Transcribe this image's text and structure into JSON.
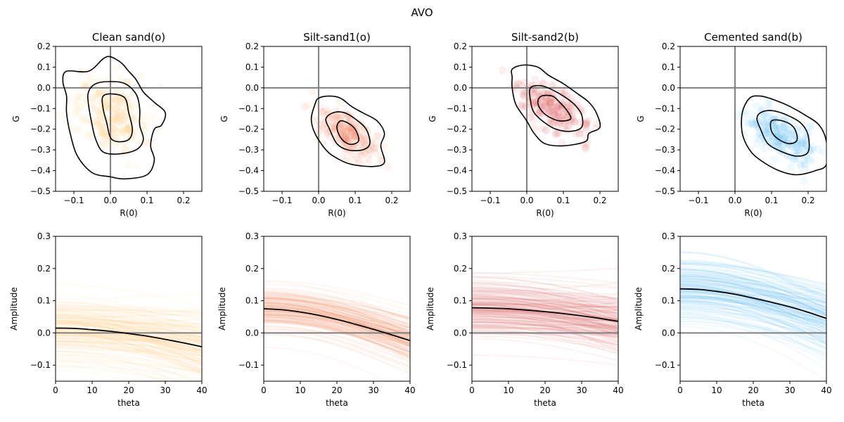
{
  "figure": {
    "title": "AVO"
  },
  "chart_data": [
    {
      "type": "scatter",
      "title": "Clean sand(o)",
      "xlabel": "R(0)",
      "ylabel": "G",
      "xlim": [
        -0.15,
        0.25
      ],
      "ylim": [
        -0.5,
        0.2
      ],
      "xticks": [
        -0.1,
        0.0,
        0.1,
        0.2
      ],
      "xtick_labels": [
        "−0.1",
        "0.0",
        "0.1",
        "0.2"
      ],
      "yticks": [
        -0.5,
        -0.4,
        -0.3,
        -0.2,
        -0.1,
        0.0,
        0.1,
        0.2
      ],
      "ytick_labels": [
        "−0.5",
        "−0.4",
        "−0.3",
        "−0.2",
        "−0.1",
        "0.0",
        "0.1",
        "0.2"
      ],
      "reference_lines": {
        "x": 0,
        "y": 0
      },
      "color": "#fdc86b",
      "point_cloud": {
        "center": [
          0.0,
          -0.13
        ],
        "spread": [
          0.05,
          0.09
        ],
        "tilt": -0.3
      },
      "contours": [
        [
          [
            -0.06,
            0.08
          ],
          [
            -0.02,
            0.14
          ],
          [
            0.0,
            0.15
          ],
          [
            0.03,
            0.12
          ],
          [
            0.05,
            0.08
          ],
          [
            0.07,
            0.04
          ],
          [
            0.09,
            -0.02
          ],
          [
            0.12,
            -0.07
          ],
          [
            0.15,
            -0.12
          ],
          [
            0.14,
            -0.18
          ],
          [
            0.12,
            -0.2
          ],
          [
            0.11,
            -0.28
          ],
          [
            0.12,
            -0.35
          ],
          [
            0.1,
            -0.42
          ],
          [
            0.04,
            -0.44
          ],
          [
            0.0,
            -0.43
          ],
          [
            -0.05,
            -0.41
          ],
          [
            -0.09,
            -0.33
          ],
          [
            -0.11,
            -0.22
          ],
          [
            -0.12,
            -0.12
          ],
          [
            -0.12,
            -0.04
          ],
          [
            -0.13,
            0.03
          ],
          [
            -0.12,
            0.08
          ]
        ],
        [
          [
            -0.04,
            0.02
          ],
          [
            0.0,
            0.03
          ],
          [
            0.04,
            0.02
          ],
          [
            0.07,
            -0.03
          ],
          [
            0.08,
            -0.1
          ],
          [
            0.08,
            -0.18
          ],
          [
            0.09,
            -0.25
          ],
          [
            0.07,
            -0.3
          ],
          [
            0.02,
            -0.32
          ],
          [
            -0.02,
            -0.31
          ],
          [
            -0.04,
            -0.25
          ],
          [
            -0.05,
            -0.18
          ],
          [
            -0.06,
            -0.08
          ],
          [
            -0.06,
            -0.02
          ]
        ],
        [
          [
            -0.02,
            -0.04
          ],
          [
            0.01,
            -0.03
          ],
          [
            0.04,
            -0.05
          ],
          [
            0.05,
            -0.12
          ],
          [
            0.06,
            -0.2
          ],
          [
            0.05,
            -0.25
          ],
          [
            0.02,
            -0.26
          ],
          [
            0.0,
            -0.24
          ],
          [
            -0.01,
            -0.17
          ],
          [
            -0.02,
            -0.1
          ]
        ]
      ]
    },
    {
      "type": "scatter",
      "title": "Silt-sand1(o)",
      "xlabel": "R(0)",
      "ylabel": "G",
      "xlim": [
        -0.15,
        0.25
      ],
      "ylim": [
        -0.5,
        0.2
      ],
      "xticks": [
        -0.1,
        0.0,
        0.1,
        0.2
      ],
      "xtick_labels": [
        "−0.1",
        "0.0",
        "0.1",
        "0.2"
      ],
      "yticks": [
        -0.5,
        -0.4,
        -0.3,
        -0.2,
        -0.1,
        0.0,
        0.1,
        0.2
      ],
      "ytick_labels": [
        "−0.5",
        "−0.4",
        "−0.3",
        "−0.2",
        "−0.1",
        "0.0",
        "0.1",
        "0.2"
      ],
      "reference_lines": {
        "x": 0,
        "y": 0
      },
      "color": "#f4895f",
      "point_cloud": {
        "center": [
          0.08,
          -0.22
        ],
        "spread": [
          0.04,
          0.06
        ],
        "tilt": -0.6
      },
      "contours": [
        [
          [
            0.0,
            -0.05
          ],
          [
            0.03,
            -0.04
          ],
          [
            0.06,
            -0.05
          ],
          [
            0.09,
            -0.09
          ],
          [
            0.12,
            -0.12
          ],
          [
            0.16,
            -0.16
          ],
          [
            0.18,
            -0.22
          ],
          [
            0.17,
            -0.28
          ],
          [
            0.18,
            -0.36
          ],
          [
            0.15,
            -0.38
          ],
          [
            0.09,
            -0.37
          ],
          [
            0.05,
            -0.34
          ],
          [
            0.02,
            -0.3
          ],
          [
            -0.01,
            -0.22
          ],
          [
            -0.02,
            -0.15
          ],
          [
            -0.01,
            -0.08
          ]
        ],
        [
          [
            0.04,
            -0.12
          ],
          [
            0.07,
            -0.12
          ],
          [
            0.1,
            -0.15
          ],
          [
            0.13,
            -0.2
          ],
          [
            0.14,
            -0.27
          ],
          [
            0.12,
            -0.3
          ],
          [
            0.08,
            -0.3
          ],
          [
            0.05,
            -0.27
          ],
          [
            0.03,
            -0.2
          ],
          [
            0.02,
            -0.15
          ]
        ],
        [
          [
            0.06,
            -0.16
          ],
          [
            0.08,
            -0.17
          ],
          [
            0.1,
            -0.2
          ],
          [
            0.11,
            -0.25
          ],
          [
            0.1,
            -0.27
          ],
          [
            0.08,
            -0.27
          ],
          [
            0.06,
            -0.24
          ],
          [
            0.05,
            -0.19
          ]
        ]
      ]
    },
    {
      "type": "scatter",
      "title": "Silt-sand2(b)",
      "xlabel": "R(0)",
      "ylabel": "G",
      "xlim": [
        -0.15,
        0.25
      ],
      "ylim": [
        -0.5,
        0.2
      ],
      "xticks": [
        -0.1,
        0.0,
        0.1,
        0.2
      ],
      "xtick_labels": [
        "−0.1",
        "0.0",
        "0.1",
        "0.2"
      ],
      "yticks": [
        -0.5,
        -0.4,
        -0.3,
        -0.2,
        -0.1,
        0.0,
        0.1,
        0.2
      ],
      "ytick_labels": [
        "−0.5",
        "−0.4",
        "−0.3",
        "−0.2",
        "−0.1",
        "0.0",
        "0.1",
        "0.2"
      ],
      "reference_lines": {
        "x": 0,
        "y": 0
      },
      "color": "#d94a4a",
      "point_cloud": {
        "center": [
          0.07,
          -0.1
        ],
        "spread": [
          0.05,
          0.07
        ],
        "tilt": -0.6
      },
      "contours": [
        [
          [
            -0.04,
            0.09
          ],
          [
            -0.01,
            0.11
          ],
          [
            0.03,
            0.1
          ],
          [
            0.06,
            0.06
          ],
          [
            0.1,
            0.02
          ],
          [
            0.14,
            -0.03
          ],
          [
            0.17,
            -0.07
          ],
          [
            0.19,
            -0.12
          ],
          [
            0.2,
            -0.19
          ],
          [
            0.17,
            -0.22
          ],
          [
            0.16,
            -0.26
          ],
          [
            0.1,
            -0.28
          ],
          [
            0.05,
            -0.27
          ],
          [
            0.02,
            -0.22
          ],
          [
            0.0,
            -0.16
          ],
          [
            -0.03,
            -0.08
          ],
          [
            -0.04,
            0.0
          ],
          [
            -0.04,
            0.05
          ]
        ],
        [
          [
            0.01,
            0.0
          ],
          [
            0.04,
            0.01
          ],
          [
            0.07,
            -0.01
          ],
          [
            0.1,
            -0.04
          ],
          [
            0.13,
            -0.08
          ],
          [
            0.15,
            -0.13
          ],
          [
            0.15,
            -0.19
          ],
          [
            0.12,
            -0.21
          ],
          [
            0.08,
            -0.2
          ],
          [
            0.05,
            -0.17
          ],
          [
            0.02,
            -0.12
          ],
          [
            0.01,
            -0.06
          ]
        ],
        [
          [
            0.04,
            -0.04
          ],
          [
            0.07,
            -0.04
          ],
          [
            0.09,
            -0.07
          ],
          [
            0.11,
            -0.11
          ],
          [
            0.12,
            -0.15
          ],
          [
            0.09,
            -0.16
          ],
          [
            0.06,
            -0.14
          ],
          [
            0.04,
            -0.11
          ],
          [
            0.03,
            -0.07
          ]
        ]
      ]
    },
    {
      "type": "scatter",
      "title": "Cemented sand(b)",
      "xlabel": "R(0)",
      "ylabel": "G",
      "xlim": [
        -0.15,
        0.25
      ],
      "ylim": [
        -0.5,
        0.2
      ],
      "xticks": [
        -0.1,
        0.0,
        0.1,
        0.2
      ],
      "xtick_labels": [
        "−0.1",
        "0.0",
        "0.1",
        "0.2"
      ],
      "yticks": [
        -0.5,
        -0.4,
        -0.3,
        -0.2,
        -0.1,
        0.0,
        0.1,
        0.2
      ],
      "ytick_labels": [
        "−0.5",
        "−0.4",
        "−0.3",
        "−0.2",
        "−0.1",
        "0.0",
        "0.1",
        "0.2"
      ],
      "reference_lines": {
        "x": 0,
        "y": 0
      },
      "color": "#5cb8f5",
      "point_cloud": {
        "center": [
          0.13,
          -0.23
        ],
        "spread": [
          0.05,
          0.07
        ],
        "tilt": -0.6
      },
      "contours": [
        [
          [
            0.04,
            -0.05
          ],
          [
            0.07,
            -0.04
          ],
          [
            0.11,
            -0.06
          ],
          [
            0.15,
            -0.09
          ],
          [
            0.19,
            -0.13
          ],
          [
            0.23,
            -0.18
          ],
          [
            0.25,
            -0.26
          ],
          [
            0.25,
            -0.37
          ],
          [
            0.22,
            -0.4
          ],
          [
            0.17,
            -0.42
          ],
          [
            0.12,
            -0.4
          ],
          [
            0.07,
            -0.35
          ],
          [
            0.04,
            -0.3
          ],
          [
            0.02,
            -0.22
          ],
          [
            0.02,
            -0.12
          ]
        ],
        [
          [
            0.07,
            -0.12
          ],
          [
            0.1,
            -0.11
          ],
          [
            0.14,
            -0.13
          ],
          [
            0.18,
            -0.17
          ],
          [
            0.2,
            -0.23
          ],
          [
            0.2,
            -0.31
          ],
          [
            0.17,
            -0.33
          ],
          [
            0.13,
            -0.31
          ],
          [
            0.09,
            -0.27
          ],
          [
            0.07,
            -0.2
          ],
          [
            0.06,
            -0.15
          ]
        ],
        [
          [
            0.1,
            -0.16
          ],
          [
            0.13,
            -0.16
          ],
          [
            0.16,
            -0.19
          ],
          [
            0.17,
            -0.25
          ],
          [
            0.15,
            -0.27
          ],
          [
            0.12,
            -0.25
          ],
          [
            0.1,
            -0.21
          ]
        ]
      ]
    },
    {
      "type": "line",
      "xlabel": "theta",
      "ylabel": "Amplitude",
      "xlim": [
        0,
        40
      ],
      "ylim": [
        -0.15,
        0.3
      ],
      "xticks": [
        0,
        10,
        20,
        30,
        40
      ],
      "xtick_labels": [
        "0",
        "10",
        "20",
        "30",
        "40"
      ],
      "yticks": [
        -0.1,
        0.0,
        0.1,
        0.2,
        0.3
      ],
      "ytick_labels": [
        "−0.1",
        "0.0",
        "0.1",
        "0.2",
        "0.3"
      ],
      "reference_lines": {
        "y": 0
      },
      "color": "#fdc86b",
      "x": [
        0,
        5,
        10,
        15,
        20,
        25,
        30,
        35,
        40
      ],
      "mean": [
        0.015,
        0.014,
        0.01,
        0.005,
        -0.002,
        -0.01,
        -0.02,
        -0.031,
        -0.043
      ],
      "ensemble": {
        "intercept_mean": 0.015,
        "intercept_sd": 0.05,
        "gradient_mean": -0.14,
        "gradient_sd": 0.09
      }
    },
    {
      "type": "line",
      "xlabel": "theta",
      "ylabel": "Amplitude",
      "xlim": [
        0,
        40
      ],
      "ylim": [
        -0.15,
        0.3
      ],
      "xticks": [
        0,
        10,
        20,
        30,
        40
      ],
      "xtick_labels": [
        "0",
        "10",
        "20",
        "30",
        "40"
      ],
      "yticks": [
        -0.1,
        0.0,
        0.1,
        0.2,
        0.3
      ],
      "ytick_labels": [
        "−0.1",
        "0.0",
        "0.1",
        "0.2",
        "0.3"
      ],
      "reference_lines": {
        "y": 0
      },
      "color": "#f4895f",
      "x": [
        0,
        5,
        10,
        15,
        20,
        25,
        30,
        35,
        40
      ],
      "mean": [
        0.075,
        0.072,
        0.065,
        0.055,
        0.042,
        0.027,
        0.011,
        -0.006,
        -0.024
      ],
      "ensemble": {
        "intercept_mean": 0.075,
        "intercept_sd": 0.035,
        "gradient_mean": -0.24,
        "gradient_sd": 0.06
      }
    },
    {
      "type": "line",
      "xlabel": "theta",
      "ylabel": "Amplitude",
      "xlim": [
        0,
        40
      ],
      "ylim": [
        -0.15,
        0.3
      ],
      "xticks": [
        0,
        10,
        20,
        30,
        40
      ],
      "xtick_labels": [
        "0",
        "10",
        "20",
        "30",
        "40"
      ],
      "yticks": [
        -0.1,
        0.0,
        0.1,
        0.2,
        0.3
      ],
      "ytick_labels": [
        "−0.1",
        "0.0",
        "0.1",
        "0.2",
        "0.3"
      ],
      "reference_lines": {
        "y": 0
      },
      "color": "#d94a4a",
      "x": [
        0,
        5,
        10,
        15,
        20,
        25,
        30,
        35,
        40
      ],
      "mean": [
        0.078,
        0.077,
        0.075,
        0.071,
        0.066,
        0.06,
        0.053,
        0.045,
        0.036
      ],
      "ensemble": {
        "intercept_mean": 0.078,
        "intercept_sd": 0.045,
        "gradient_mean": -0.1,
        "gradient_sd": 0.07
      }
    },
    {
      "type": "line",
      "xlabel": "theta",
      "ylabel": "Amplitude",
      "xlim": [
        0,
        40
      ],
      "ylim": [
        -0.15,
        0.3
      ],
      "xticks": [
        0,
        10,
        20,
        30,
        40
      ],
      "xtick_labels": [
        "0",
        "10",
        "20",
        "30",
        "40"
      ],
      "yticks": [
        -0.1,
        0.0,
        0.1,
        0.2,
        0.3
      ],
      "ytick_labels": [
        "−0.1",
        "0.0",
        "0.1",
        "0.2",
        "0.3"
      ],
      "reference_lines": {
        "y": 0
      },
      "color": "#5cb8f5",
      "x": [
        0,
        5,
        10,
        15,
        20,
        25,
        30,
        35,
        40
      ],
      "mean": [
        0.137,
        0.135,
        0.129,
        0.12,
        0.108,
        0.095,
        0.081,
        0.064,
        0.045
      ],
      "ensemble": {
        "intercept_mean": 0.137,
        "intercept_sd": 0.05,
        "gradient_mean": -0.23,
        "gradient_sd": 0.08
      }
    }
  ]
}
